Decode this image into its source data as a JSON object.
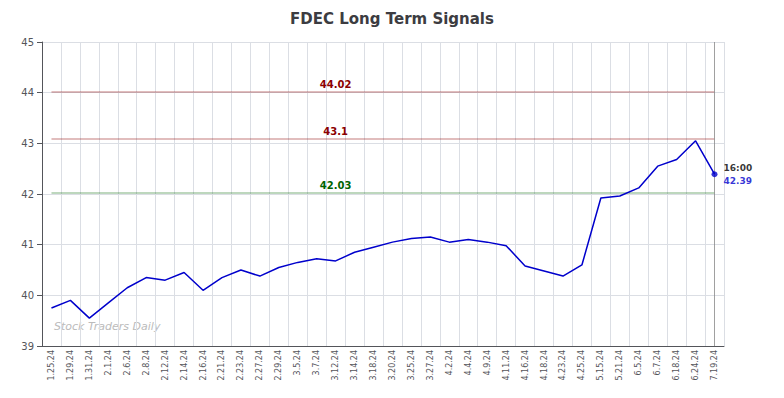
{
  "chart_data": {
    "type": "line",
    "title": "FDEC Long Term Signals",
    "categories": [
      "1.25.24",
      "1.29.24",
      "1.31.24",
      "2.1.24",
      "2.6.24",
      "2.8.24",
      "2.12.24",
      "2.14.24",
      "2.16.24",
      "2.21.24",
      "2.23.24",
      "2.27.24",
      "2.29.24",
      "3.5.24",
      "3.7.24",
      "3.12.24",
      "3.14.24",
      "3.18.24",
      "3.20.24",
      "3.25.24",
      "3.27.24",
      "4.2.24",
      "4.4.24",
      "4.9.24",
      "4.11.24",
      "4.16.24",
      "4.18.24",
      "4.23.24",
      "4.25.24",
      "5.15.24",
      "5.21.24",
      "6.5.24",
      "6.7.24",
      "6.18.24",
      "6.24.24",
      "7.19.24"
    ],
    "values": [
      39.75,
      39.9,
      39.55,
      39.85,
      40.15,
      40.35,
      40.3,
      40.45,
      40.1,
      40.35,
      40.5,
      40.38,
      40.55,
      40.65,
      40.72,
      40.68,
      40.85,
      40.95,
      41.05,
      41.12,
      41.15,
      41.05,
      41.1,
      41.05,
      40.98,
      40.58,
      40.48,
      40.38,
      40.6,
      41.92,
      41.96,
      42.12,
      42.55,
      42.68,
      43.05,
      42.39
    ],
    "color": "#0000cc",
    "ylim": [
      39,
      45
    ],
    "yticks": [
      39,
      40,
      41,
      42,
      43,
      44,
      45
    ],
    "grid": true,
    "reference_lines": [
      {
        "value": 44.02,
        "color": "#8b0000"
      },
      {
        "value": 43.1,
        "color": "#8b0000"
      },
      {
        "value": 42.03,
        "color": "#006400"
      }
    ],
    "last_point": {
      "time": "16:00",
      "value": 42.39
    },
    "watermark": "Stock Traders Daily"
  }
}
